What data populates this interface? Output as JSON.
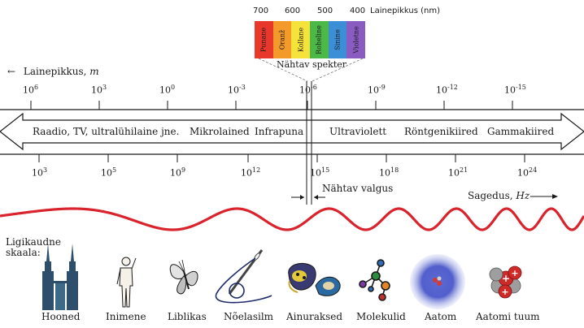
{
  "visible_spectrum": {
    "axis_label": "Lainepikkus (nm)",
    "ticks": [
      "700",
      "600",
      "500",
      "400"
    ],
    "bands": [
      {
        "name": "Punane",
        "color": "#e8382c"
      },
      {
        "name": "Oranž",
        "color": "#f39a2a"
      },
      {
        "name": "Kollane",
        "color": "#f5e23a"
      },
      {
        "name": "Roheline",
        "color": "#4cb848"
      },
      {
        "name": "Sinine",
        "color": "#3c8fd6"
      },
      {
        "name": "Violetne",
        "color": "#8a5bc0"
      }
    ],
    "caption": "Nähtav spekter"
  },
  "wavelength": {
    "label_arrow": "←",
    "label_text": "Lainepikkus, ",
    "label_unit": "m",
    "ticks": [
      {
        "base": "10",
        "exp": "6"
      },
      {
        "base": "10",
        "exp": "3"
      },
      {
        "base": "10",
        "exp": "0"
      },
      {
        "base": "10",
        "exp": "-3"
      },
      {
        "base": "10",
        "exp": "-6"
      },
      {
        "base": "10",
        "exp": "-9"
      },
      {
        "base": "10",
        "exp": "-12"
      },
      {
        "base": "10",
        "exp": "-15"
      }
    ]
  },
  "regions": [
    "Raadio, TV, ultralühilaine jne.",
    "Mikrolained",
    "Infrapuna",
    "Ultraviolett",
    "Röntgenikiired",
    "Gammakiired"
  ],
  "frequency": {
    "ticks": [
      {
        "base": "10",
        "exp": "3"
      },
      {
        "base": "10",
        "exp": "5"
      },
      {
        "base": "10",
        "exp": "9"
      },
      {
        "base": "10",
        "exp": "12"
      },
      {
        "base": "10",
        "exp": "15"
      },
      {
        "base": "10",
        "exp": "18"
      },
      {
        "base": "10",
        "exp": "21"
      },
      {
        "base": "10",
        "exp": "24"
      }
    ],
    "label_text": "Sagedus, ",
    "label_unit": "Hz",
    "label_arrow": "→"
  },
  "visible_light_label": "Nähtav valgus",
  "scale": {
    "heading": "Ligikaudne\nskaala:",
    "items": [
      "Hooned",
      "Inimene",
      "Liblikas",
      "Nõelasilm",
      "Ainuraksed",
      "Molekulid",
      "Aatom",
      "Aatomi tuum"
    ]
  },
  "colors": {
    "wave": "#d9232d",
    "arrow_stroke": "#1a1a1a"
  }
}
